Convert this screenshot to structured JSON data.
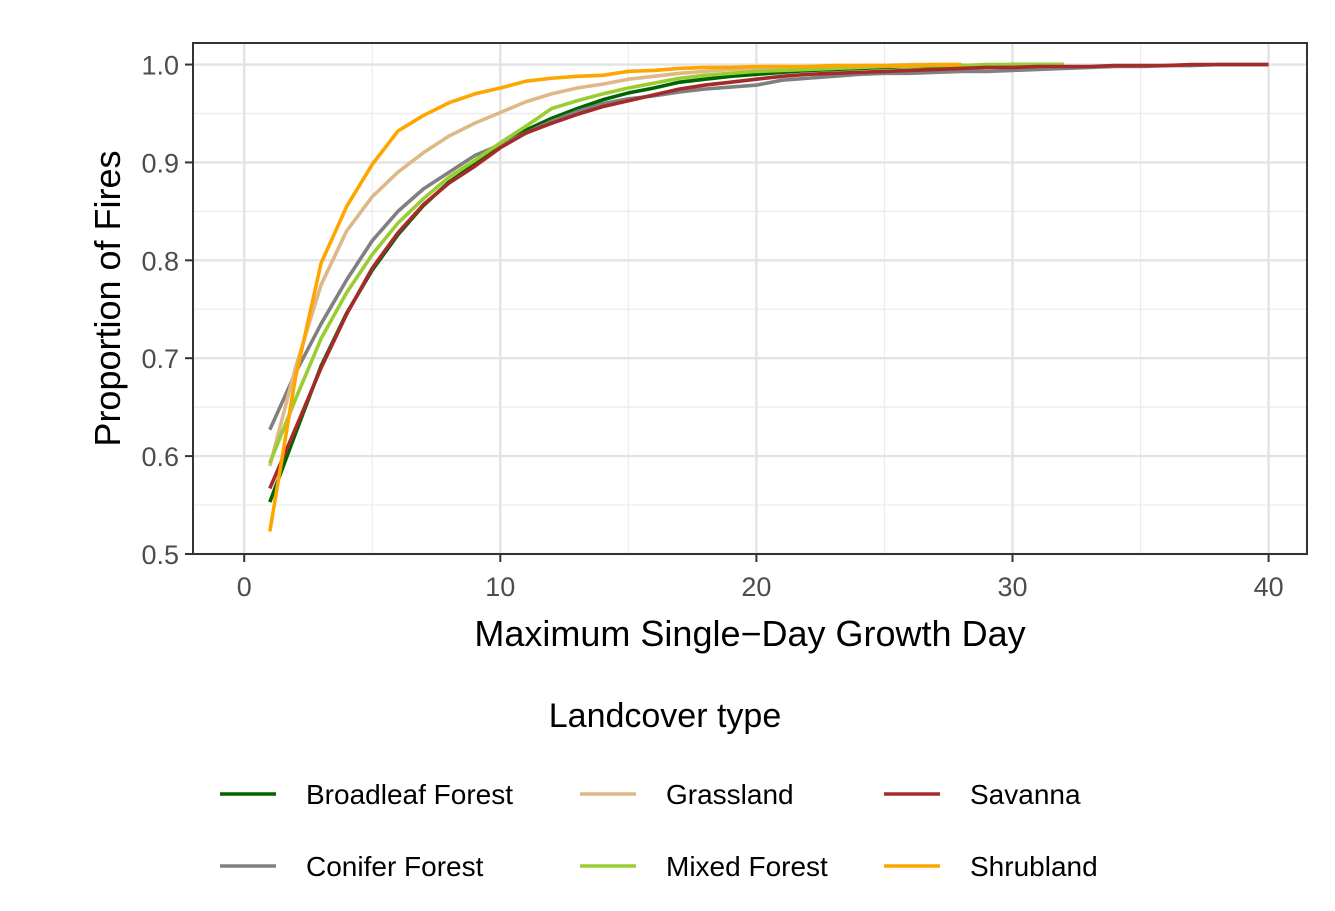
{
  "chart_data": {
    "type": "line",
    "title": "",
    "xlabel": "Maximum Single−Day Growth Day",
    "ylabel": "Proportion of Fires",
    "xlim": [
      -2,
      41.5
    ],
    "ylim": [
      0.5,
      1.022
    ],
    "x_ticks": [
      0,
      10,
      20,
      30,
      40
    ],
    "x_tick_labels": [
      "0",
      "10",
      "20",
      "30",
      "40"
    ],
    "y_ticks": [
      0.5,
      0.6,
      0.7,
      0.8,
      0.9,
      1.0
    ],
    "y_tick_labels": [
      "0.5",
      "0.6",
      "0.7",
      "0.8",
      "0.9",
      "1.0"
    ],
    "grid": true,
    "legend": {
      "title": "Landcover type",
      "position": "bottom",
      "columns": 3
    },
    "series": [
      {
        "name": "Broadleaf Forest",
        "color": "#006400",
        "x": [
          1,
          2,
          3,
          4,
          5,
          6,
          7,
          8,
          9,
          10,
          11,
          12,
          13,
          14,
          15,
          16,
          17,
          18,
          19,
          20,
          21,
          22,
          23,
          24,
          25,
          26,
          27,
          28,
          29,
          30,
          31,
          32
        ],
        "y": [
          0.553,
          0.623,
          0.692,
          0.746,
          0.79,
          0.826,
          0.856,
          0.88,
          0.898,
          0.917,
          0.933,
          0.945,
          0.955,
          0.964,
          0.971,
          0.976,
          0.982,
          0.985,
          0.988,
          0.99,
          0.992,
          0.994,
          0.995,
          0.996,
          0.997,
          0.998,
          0.998,
          0.999,
          0.999,
          1.0,
          1.0,
          1.0
        ]
      },
      {
        "name": "Conifer Forest",
        "color": "#808080",
        "x": [
          1,
          2,
          3,
          4,
          5,
          6,
          7,
          8,
          9,
          10,
          11,
          12,
          13,
          14,
          15,
          16,
          17,
          18,
          19,
          20,
          21,
          22,
          23,
          24,
          25,
          26,
          27,
          28,
          29,
          30,
          31,
          32,
          33,
          34,
          35,
          36,
          37,
          38,
          39,
          40
        ],
        "y": [
          0.627,
          0.685,
          0.735,
          0.78,
          0.82,
          0.85,
          0.873,
          0.89,
          0.907,
          0.918,
          0.93,
          0.942,
          0.952,
          0.96,
          0.965,
          0.968,
          0.972,
          0.975,
          0.977,
          0.979,
          0.984,
          0.986,
          0.988,
          0.99,
          0.991,
          0.991,
          0.992,
          0.993,
          0.993,
          0.994,
          0.995,
          0.996,
          0.997,
          0.998,
          0.998,
          0.999,
          0.999,
          1.0,
          1.0,
          1.0
        ]
      },
      {
        "name": "Grassland",
        "color": "#DEB887",
        "x": [
          1,
          2,
          3,
          4,
          5,
          6,
          7,
          8,
          9,
          10,
          11,
          12,
          13,
          14,
          15,
          16,
          17,
          18,
          19,
          20,
          21,
          22,
          23,
          24,
          25,
          26,
          27,
          28
        ],
        "y": [
          0.59,
          0.69,
          0.775,
          0.83,
          0.865,
          0.89,
          0.91,
          0.927,
          0.94,
          0.951,
          0.962,
          0.97,
          0.976,
          0.98,
          0.985,
          0.988,
          0.991,
          0.993,
          0.995,
          0.996,
          0.997,
          0.998,
          0.998,
          0.999,
          0.999,
          1.0,
          1.0,
          1.0
        ]
      },
      {
        "name": "Mixed Forest",
        "color": "#9ACD32",
        "x": [
          1,
          2,
          3,
          4,
          5,
          6,
          7,
          8,
          9,
          10,
          11,
          12,
          13,
          14,
          15,
          16,
          17,
          18,
          19,
          20,
          21,
          22,
          23,
          24,
          25,
          26,
          27,
          28,
          29,
          30,
          31,
          32
        ],
        "y": [
          0.593,
          0.658,
          0.72,
          0.767,
          0.806,
          0.838,
          0.863,
          0.885,
          0.902,
          0.92,
          0.937,
          0.955,
          0.963,
          0.97,
          0.976,
          0.981,
          0.986,
          0.989,
          0.991,
          0.993,
          0.994,
          0.995,
          0.996,
          0.997,
          0.998,
          0.998,
          0.999,
          0.999,
          1.0,
          1.0,
          1.0,
          1.0
        ]
      },
      {
        "name": "Savanna",
        "color": "#A52A2A",
        "x": [
          1,
          2,
          3,
          4,
          5,
          6,
          7,
          8,
          9,
          10,
          11,
          12,
          13,
          14,
          15,
          16,
          17,
          18,
          19,
          20,
          21,
          22,
          23,
          24,
          25,
          26,
          27,
          28,
          29,
          30,
          31,
          32,
          33,
          34,
          35,
          36,
          37,
          38,
          39,
          40
        ],
        "y": [
          0.567,
          0.628,
          0.69,
          0.745,
          0.792,
          0.828,
          0.857,
          0.879,
          0.896,
          0.915,
          0.93,
          0.94,
          0.949,
          0.957,
          0.963,
          0.969,
          0.975,
          0.979,
          0.982,
          0.985,
          0.988,
          0.99,
          0.991,
          0.992,
          0.993,
          0.994,
          0.995,
          0.996,
          0.997,
          0.997,
          0.998,
          0.998,
          0.998,
          0.999,
          0.999,
          0.999,
          1.0,
          1.0,
          1.0,
          1.0
        ]
      },
      {
        "name": "Shrubland",
        "color": "#FFA500",
        "x": [
          1,
          2,
          3,
          4,
          5,
          6,
          7,
          8,
          9,
          10,
          11,
          12,
          13,
          14,
          15,
          16,
          17,
          18,
          19,
          20,
          21,
          22,
          23,
          24,
          25,
          26,
          27,
          28
        ],
        "y": [
          0.523,
          0.68,
          0.797,
          0.855,
          0.898,
          0.932,
          0.948,
          0.961,
          0.97,
          0.976,
          0.983,
          0.986,
          0.988,
          0.989,
          0.993,
          0.994,
          0.996,
          0.997,
          0.997,
          0.998,
          0.998,
          0.998,
          0.999,
          0.999,
          0.999,
          0.999,
          1.0,
          1.0
        ]
      }
    ]
  }
}
